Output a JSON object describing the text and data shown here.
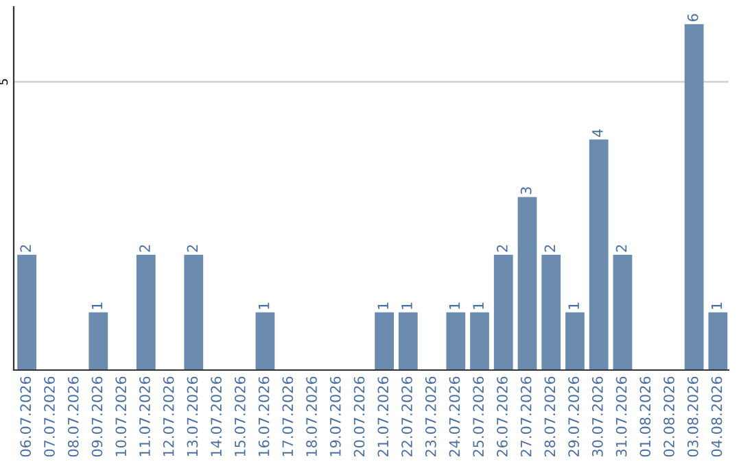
{
  "chart_data": {
    "type": "bar",
    "categories": [
      "06.07.2026",
      "07.07.2026",
      "08.07.2026",
      "09.07.2026",
      "10.07.2026",
      "11.07.2026",
      "12.07.2026",
      "13.07.2026",
      "14.07.2026",
      "15.07.2026",
      "16.07.2026",
      "17.07.2026",
      "18.07.2026",
      "19.07.2026",
      "20.07.2026",
      "21.07.2026",
      "22.07.2026",
      "23.07.2026",
      "24.07.2026",
      "25.07.2026",
      "26.07.2026",
      "27.07.2026",
      "28.07.2026",
      "29.07.2026",
      "30.07.2026",
      "31.07.2026",
      "01.08.2026",
      "02.08.2026",
      "03.08.2026",
      "04.08.2026"
    ],
    "values": [
      2,
      0,
      0,
      1,
      0,
      2,
      0,
      2,
      0,
      0,
      1,
      0,
      0,
      0,
      0,
      1,
      1,
      0,
      1,
      1,
      2,
      3,
      2,
      1,
      4,
      2,
      0,
      0,
      6,
      1
    ],
    "value_labels": [
      "2",
      null,
      null,
      "1",
      null,
      "2",
      null,
      "2",
      null,
      null,
      "1",
      null,
      null,
      null,
      null,
      "1",
      "1",
      null,
      "1",
      "1",
      "2",
      "3",
      "2",
      "1",
      "4",
      "2",
      null,
      null,
      "6",
      "1"
    ],
    "color": "#6b8cae",
    "ylim": [
      0,
      6.3
    ],
    "yticks": [
      5
    ],
    "grid": "y"
  }
}
